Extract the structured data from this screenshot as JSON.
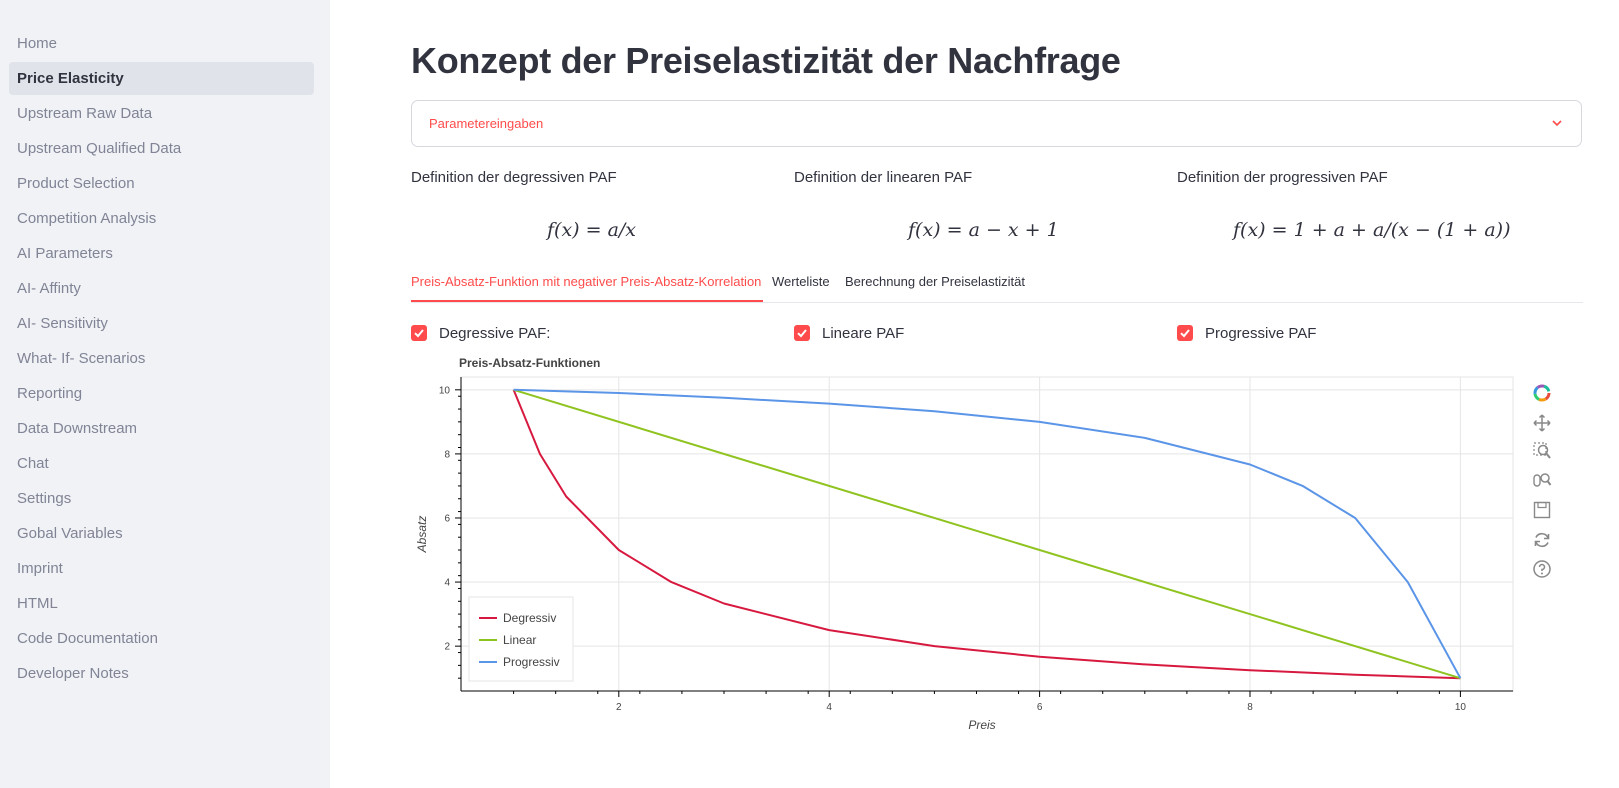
{
  "sidebar": {
    "items": [
      {
        "label": "Home",
        "active": false
      },
      {
        "label": "Price Elasticity",
        "active": true
      },
      {
        "label": "Upstream Raw Data",
        "active": false
      },
      {
        "label": "Upstream Qualified Data",
        "active": false
      },
      {
        "label": "Product Selection",
        "active": false
      },
      {
        "label": "Competition Analysis",
        "active": false
      },
      {
        "label": "AI Parameters",
        "active": false
      },
      {
        "label": "AI- Affinty",
        "active": false
      },
      {
        "label": "AI- Sensitivity",
        "active": false
      },
      {
        "label": "What- If- Scenarios",
        "active": false
      },
      {
        "label": "Reporting",
        "active": false
      },
      {
        "label": "Data Downstream",
        "active": false
      },
      {
        "label": "Chat",
        "active": false
      },
      {
        "label": "Settings",
        "active": false
      },
      {
        "label": "Gobal Variables",
        "active": false
      },
      {
        "label": "Imprint",
        "active": false
      },
      {
        "label": "HTML",
        "active": false
      },
      {
        "label": "Code Documentation",
        "active": false
      },
      {
        "label": "Developer Notes",
        "active": false
      }
    ]
  },
  "main": {
    "title": "Konzept der Preiselastizität der Nachfrage",
    "expander": {
      "label": "Parametereingaben"
    },
    "definitions": [
      {
        "label": "Definition der degressiven PAF",
        "formula": "f(x) = a/x"
      },
      {
        "label": "Definition der linearen PAF",
        "formula": "f(x) = a − x + 1"
      },
      {
        "label": "Definition der progressiven PAF",
        "formula": "f(x) = 1 + a + a/(x − (1 + a))"
      }
    ],
    "tabs": [
      {
        "label": "Preis-Absatz-Funktion mit negativer Preis-Absatz-Korrelation",
        "active": true
      },
      {
        "label": "Werteliste",
        "active": false
      },
      {
        "label": "Berechnung der Preiselastizität",
        "active": false
      }
    ],
    "checkboxes": [
      {
        "label": "Degressive PAF:",
        "checked": true
      },
      {
        "label": "Lineare PAF",
        "checked": true
      },
      {
        "label": "Progressive PAF",
        "checked": true
      }
    ]
  },
  "toolbar": {
    "icons": [
      "bokeh-logo-icon",
      "pan-icon",
      "box-zoom-icon",
      "wheel-zoom-icon",
      "save-icon",
      "reset-icon",
      "help-icon"
    ]
  },
  "colors": {
    "accent": "#ff4b4b",
    "degressiv": "#d7193f",
    "linear": "#8fc31f",
    "progressiv": "#5b95e8"
  },
  "chart_data": {
    "type": "line",
    "title": "Preis-Absatz-Funktionen",
    "xlabel": "Preis",
    "ylabel": "Absatz",
    "xlim": [
      0.5,
      10.5
    ],
    "ylim": [
      0.6,
      10.4
    ],
    "xticks": [
      2,
      4,
      6,
      8,
      10
    ],
    "yticks": [
      2,
      4,
      6,
      8,
      10
    ],
    "grid": true,
    "legend_position": "bottom-left",
    "series": [
      {
        "name": "Degressiv",
        "color": "#d7193f",
        "x": [
          1,
          1.25,
          1.5,
          2,
          2.5,
          3,
          4,
          5,
          6,
          7,
          8,
          9,
          10
        ],
        "y": [
          10,
          8,
          6.67,
          5,
          4,
          3.33,
          2.5,
          2,
          1.67,
          1.43,
          1.25,
          1.11,
          1
        ]
      },
      {
        "name": "Linear",
        "color": "#8fc31f",
        "x": [
          1,
          10
        ],
        "y": [
          10,
          1
        ]
      },
      {
        "name": "Progressiv",
        "color": "#5b95e8",
        "x": [
          1,
          2,
          3,
          4,
          5,
          6,
          7,
          8,
          8.5,
          9,
          9.5,
          10
        ],
        "y": [
          10,
          9.9,
          9.75,
          9.57,
          9.33,
          9,
          8.5,
          7.67,
          7,
          6,
          4,
          1
        ]
      }
    ]
  }
}
